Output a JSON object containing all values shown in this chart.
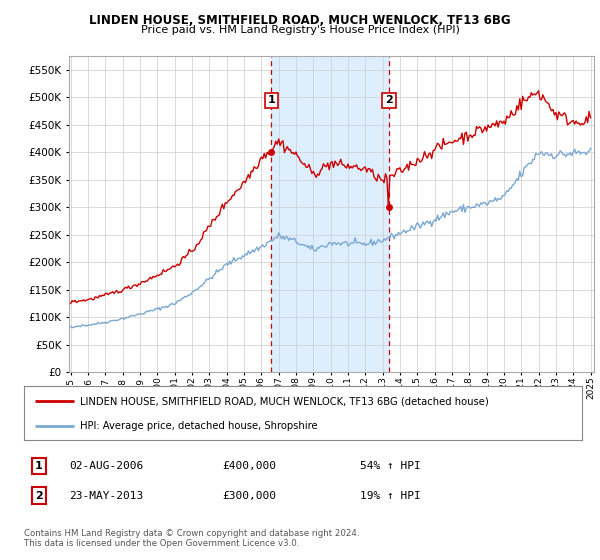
{
  "title": "LINDEN HOUSE, SMITHFIELD ROAD, MUCH WENLOCK, TF13 6BG",
  "subtitle": "Price paid vs. HM Land Registry's House Price Index (HPI)",
  "legend_line1": "LINDEN HOUSE, SMITHFIELD ROAD, MUCH WENLOCK, TF13 6BG (detached house)",
  "legend_line2": "HPI: Average price, detached house, Shropshire",
  "sale1_label": "1",
  "sale1_date": "02-AUG-2006",
  "sale1_price": "£400,000",
  "sale1_hpi": "54% ↑ HPI",
  "sale2_label": "2",
  "sale2_date": "23-MAY-2013",
  "sale2_price": "£300,000",
  "sale2_hpi": "19% ↑ HPI",
  "footer": "Contains HM Land Registry data © Crown copyright and database right 2024.\nThis data is licensed under the Open Government Licence v3.0.",
  "red_color": "#cc0000",
  "blue_color": "#7aa8d2",
  "background_color": "#ffffff",
  "plot_bg_color": "#ffffff",
  "grid_color": "#cccccc",
  "shaded_color": "#ddeeff",
  "ylim": [
    0,
    575000
  ],
  "yticks": [
    0,
    50000,
    100000,
    150000,
    200000,
    250000,
    300000,
    350000,
    400000,
    450000,
    500000,
    550000
  ],
  "sale1_x": 2006.583,
  "sale1_y": 400000,
  "sale2_x": 2013.375,
  "sale2_y": 300000,
  "sale1_vline_x": 2006.583,
  "sale2_vline_x": 2013.375,
  "shade_x_start": 2006.583,
  "shade_x_end": 2013.375,
  "xmin": 1994.9,
  "xmax": 2025.2
}
